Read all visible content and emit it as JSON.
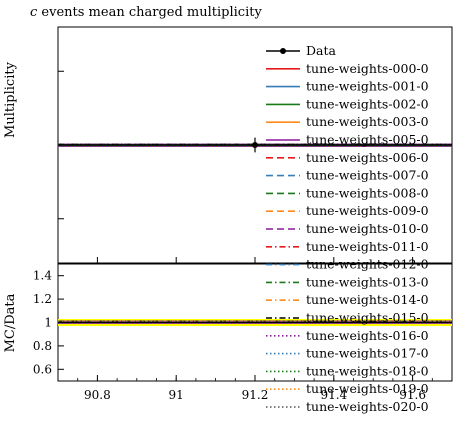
{
  "chart_data": {
    "type": "line",
    "title": "c events mean charged multiplicity",
    "title_italic_prefix": "c",
    "title_rest": " events mean charged multiplicity",
    "upper_panel": {
      "ylabel": "Multiplicity",
      "data_point": {
        "name": "Data",
        "x": 91.2,
        "y": 0.0,
        "yerr": 0.05
      },
      "ylim": [
        -0.8,
        0.8
      ]
    },
    "ratio_panel": {
      "ylabel": "MC/Data",
      "yticks": [
        "0.6",
        "0.8",
        "1",
        "1.2",
        "1.4"
      ],
      "ytick_values": [
        0.6,
        0.8,
        1.0,
        1.2,
        1.4
      ],
      "ylim": [
        0.5,
        1.5
      ],
      "band": [
        0.97,
        1.03
      ]
    },
    "x_axis": {
      "xlim": [
        90.7,
        91.7
      ],
      "ticks": [
        "90.8",
        "91",
        "91.2",
        "91.4",
        "91.6"
      ],
      "tick_values": [
        90.8,
        91.0,
        91.2,
        91.4,
        91.6
      ]
    },
    "series": [
      {
        "name": "Data",
        "color": "#000000",
        "style": "data"
      },
      {
        "name": "tune-weights-000-0",
        "color": "#e41a1c",
        "style": "solid"
      },
      {
        "name": "tune-weights-001-0",
        "color": "#377eb8",
        "style": "solid"
      },
      {
        "name": "tune-weights-002-0",
        "color": "#1a7a1a",
        "style": "solid"
      },
      {
        "name": "tune-weights-003-0",
        "color": "#ff8c1a",
        "style": "solid"
      },
      {
        "name": "tune-weights-005-0",
        "color": "#8b1a9a",
        "style": "solid"
      },
      {
        "name": "tune-weights-006-0",
        "color": "#e41a1c",
        "style": "dashed"
      },
      {
        "name": "tune-weights-007-0",
        "color": "#377eb8",
        "style": "dashed"
      },
      {
        "name": "tune-weights-008-0",
        "color": "#1a7a1a",
        "style": "dashed"
      },
      {
        "name": "tune-weights-009-0",
        "color": "#ff8c1a",
        "style": "dashed"
      },
      {
        "name": "tune-weights-010-0",
        "color": "#8b1a9a",
        "style": "dashed"
      },
      {
        "name": "tune-weights-011-0",
        "color": "#e41a1c",
        "style": "dashdot"
      },
      {
        "name": "tune-weights-012-0",
        "color": "#377eb8",
        "style": "dashdot"
      },
      {
        "name": "tune-weights-013-0",
        "color": "#1a7a1a",
        "style": "dashdot"
      },
      {
        "name": "tune-weights-014-0",
        "color": "#ff8c1a",
        "style": "dashdot"
      },
      {
        "name": "tune-weights-015-0",
        "color": "#000000",
        "style": "dashdot"
      },
      {
        "name": "tune-weights-016-0",
        "color": "#8b1a9a",
        "style": "dotted"
      },
      {
        "name": "tune-weights-017-0",
        "color": "#377eb8",
        "style": "dotted"
      },
      {
        "name": "tune-weights-018-0",
        "color": "#1a7a1a",
        "style": "dotted"
      },
      {
        "name": "tune-weights-019-0",
        "color": "#ff8c1a",
        "style": "dotted"
      },
      {
        "name": "tune-weights-020-0",
        "color": "#555555",
        "style": "dotted"
      }
    ]
  }
}
